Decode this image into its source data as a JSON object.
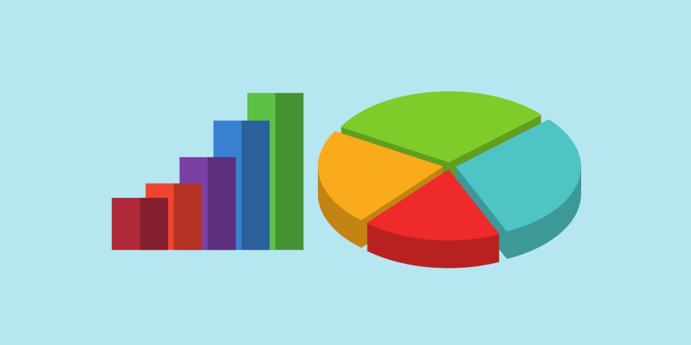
{
  "chart_data": [
    {
      "type": "bar",
      "categories": [
        null,
        null,
        null,
        null,
        null
      ],
      "values": [
        75,
        96,
        134,
        187,
        227
      ],
      "colors": [
        "#b0283a",
        "#ef4430",
        "#7b3fa6",
        "#3a80d0",
        "#5cc243"
      ],
      "tick_labels": false
    },
    {
      "type": "pie",
      "categories": [
        null,
        null,
        null,
        null
      ],
      "values": [
        30,
        30,
        18,
        22
      ],
      "colors": [
        "#7ecb2a",
        "#4fc4c4",
        "#ee2a2a",
        "#f9ab1b"
      ]
    }
  ]
}
